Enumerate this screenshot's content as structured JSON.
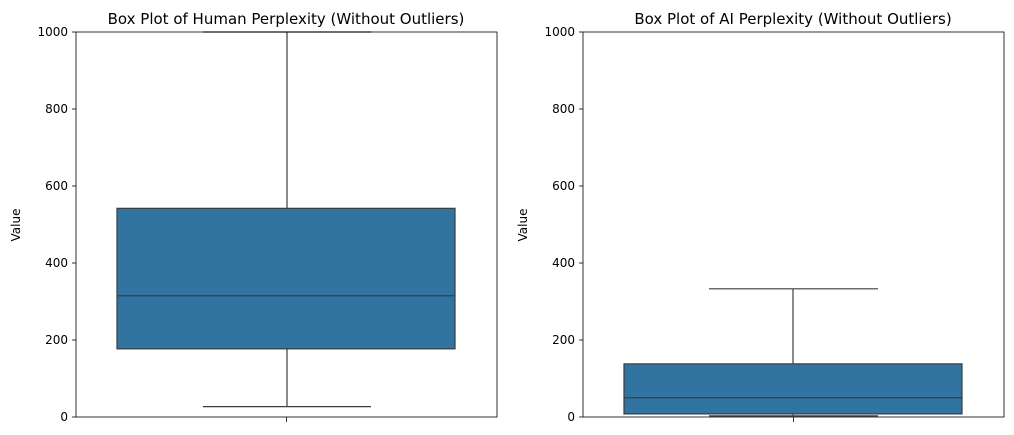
{
  "chart_data": [
    {
      "type": "box",
      "title": "Box Plot of Human Perplexity (Without Outliers)",
      "xlabel": "",
      "ylabel": "Value",
      "ylim": [
        0,
        1000
      ],
      "yticks": [
        0,
        200,
        400,
        600,
        800,
        1000
      ],
      "grid": false,
      "box": {
        "whisker_low": 27,
        "q1": 177,
        "median": 315,
        "q3": 542,
        "whisker_high": 1000
      },
      "color": "#3274a1"
    },
    {
      "type": "box",
      "title": "Box Plot of AI Perplexity (Without Outliers)",
      "xlabel": "",
      "ylabel": "Value",
      "ylim": [
        0,
        1000
      ],
      "yticks": [
        0,
        200,
        400,
        600,
        800,
        1000
      ],
      "grid": false,
      "box": {
        "whisker_low": 3,
        "q1": 8,
        "median": 50,
        "q3": 138,
        "whisker_high": 333
      },
      "color": "#3274a1"
    }
  ]
}
